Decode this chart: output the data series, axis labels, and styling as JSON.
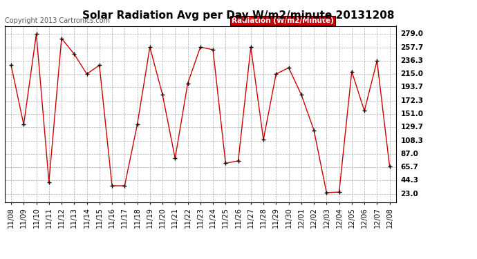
{
  "title": "Solar Radiation Avg per Day W/m2/minute 20131208",
  "copyright_text": "Copyright 2013 Cartronics.com",
  "legend_label": "Radiation (W/m2/Minute)",
  "legend_bg": "#cc0000",
  "legend_fg": "#ffffff",
  "line_color": "#cc0000",
  "marker_color": "#000000",
  "background_color": "#ffffff",
  "grid_color": "#aaaaaa",
  "dates": [
    "11/08",
    "11/09",
    "11/10",
    "11/11",
    "11/12",
    "11/13",
    "11/14",
    "11/15",
    "11/16",
    "11/17",
    "11/18",
    "11/19",
    "11/20",
    "11/21",
    "11/22",
    "11/23",
    "11/24",
    "11/25",
    "11/26",
    "11/27",
    "11/28",
    "11/29",
    "11/30",
    "12/01",
    "12/02",
    "12/03",
    "12/04",
    "12/05",
    "12/06",
    "12/07",
    "12/08"
  ],
  "values": [
    229.0,
    134.0,
    279.0,
    42.0,
    272.0,
    247.0,
    215.0,
    229.0,
    36.0,
    36.0,
    134.0,
    258.0,
    182.0,
    80.0,
    200.0,
    258.0,
    254.0,
    72.0,
    76.0,
    258.0,
    110.0,
    215.0,
    225.0,
    182.0,
    125.0,
    25.0,
    26.0,
    219.0,
    156.0,
    236.0,
    67.0
  ],
  "yticks": [
    23.0,
    44.3,
    65.7,
    87.0,
    108.3,
    129.7,
    151.0,
    172.3,
    193.7,
    215.0,
    236.3,
    257.7,
    279.0
  ],
  "ylim": [
    10.0,
    292.0
  ],
  "title_fontsize": 11,
  "tick_fontsize": 7.5,
  "copyright_fontsize": 7
}
